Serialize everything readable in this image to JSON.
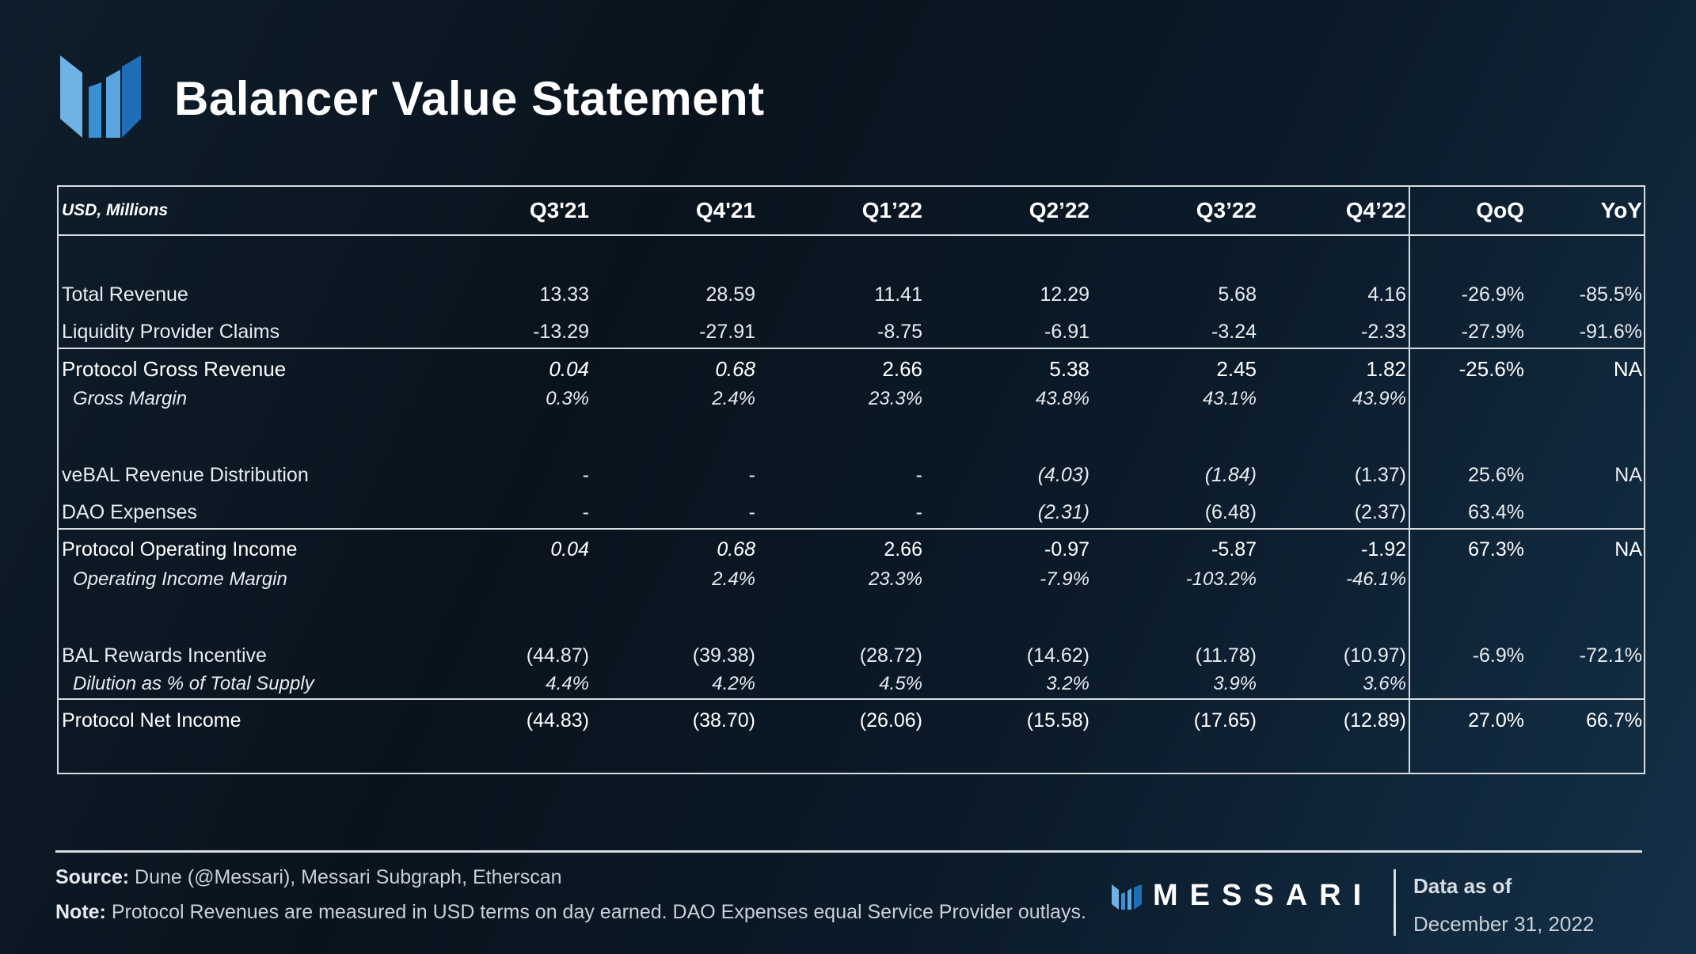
{
  "title": "Balancer Value Statement",
  "colors": {
    "accent_light": "#6fb3e6",
    "accent_mid": "#3c8fd4",
    "accent_dark": "#1f6fb8"
  },
  "icons": {
    "logo": "messari-bar-logo-icon"
  },
  "header": {
    "unit_label": "USD, Millions",
    "columns": [
      "Q3'21",
      "Q4'21",
      "Q1’22",
      "Q2’22",
      "Q3’22",
      "Q4’22",
      "QoQ",
      "YoY"
    ]
  },
  "rows": {
    "total_revenue": {
      "label": "Total Revenue",
      "values": [
        "13.33",
        "28.59",
        "11.41",
        "12.29",
        "5.68",
        "4.16",
        "-26.9%",
        "-85.5%"
      ]
    },
    "lp_claims": {
      "label": "Liquidity Provider Claims",
      "values": [
        "-13.29",
        "-27.91",
        "-8.75",
        "-6.91",
        "-3.24",
        "-2.33",
        "-27.9%",
        "-91.6%"
      ]
    },
    "gross_revenue": {
      "label": "Protocol Gross Revenue",
      "values": [
        "0.04",
        "0.68",
        "2.66",
        "5.38",
        "2.45",
        "1.82",
        "-25.6%",
        "NA"
      ]
    },
    "gross_margin": {
      "label": "Gross Margin",
      "values": [
        "0.3%",
        "2.4%",
        "23.3%",
        "43.8%",
        "43.1%",
        "43.9%",
        "",
        ""
      ]
    },
    "vebal_distribution": {
      "label": "veBAL Revenue Distribution",
      "values": [
        "-",
        "-",
        "-",
        "(4.03)",
        "(1.84)",
        "(1.37)",
        "25.6%",
        "NA"
      ]
    },
    "dao_expenses": {
      "label": "DAO Expenses",
      "values": [
        "-",
        "-",
        "-",
        "(2.31)",
        "(6.48)",
        "(2.37)",
        "63.4%",
        ""
      ]
    },
    "operating_income": {
      "label": "Protocol Operating Income",
      "values": [
        "0.04",
        "0.68",
        "2.66",
        "-0.97",
        "-5.87",
        "-1.92",
        "67.3%",
        "NA"
      ]
    },
    "operating_margin": {
      "label": "Operating Income Margin",
      "values": [
        "",
        "2.4%",
        "23.3%",
        "-7.9%",
        "-103.2%",
        "-46.1%",
        "",
        ""
      ]
    },
    "bal_rewards": {
      "label": "BAL Rewards Incentive",
      "values": [
        "(44.87)",
        "(39.38)",
        "(28.72)",
        "(14.62)",
        "(11.78)",
        "(10.97)",
        "-6.9%",
        "-72.1%"
      ]
    },
    "dilution": {
      "label": "Dilution as % of Total Supply",
      "values": [
        "4.4%",
        "4.2%",
        "4.5%",
        "3.2%",
        "3.9%",
        "3.6%",
        "",
        ""
      ]
    },
    "net_income": {
      "label": "Protocol Net Income",
      "values": [
        "(44.83)",
        "(38.70)",
        "(26.06)",
        "(15.58)",
        "(17.65)",
        "(12.89)",
        "27.0%",
        "66.7%"
      ]
    }
  },
  "footer": {
    "source_label": "Source:",
    "source_text": " Dune (@Messari), Messari Subgraph, Etherscan",
    "note_label": "Note:",
    "note_text": " Protocol Revenues are measured in USD terms on day earned. DAO Expenses equal Service Provider outlays.",
    "brand": "MESSARI",
    "data_as_of_label": "Data as of",
    "data_as_of_date": "December 31, 2022"
  }
}
